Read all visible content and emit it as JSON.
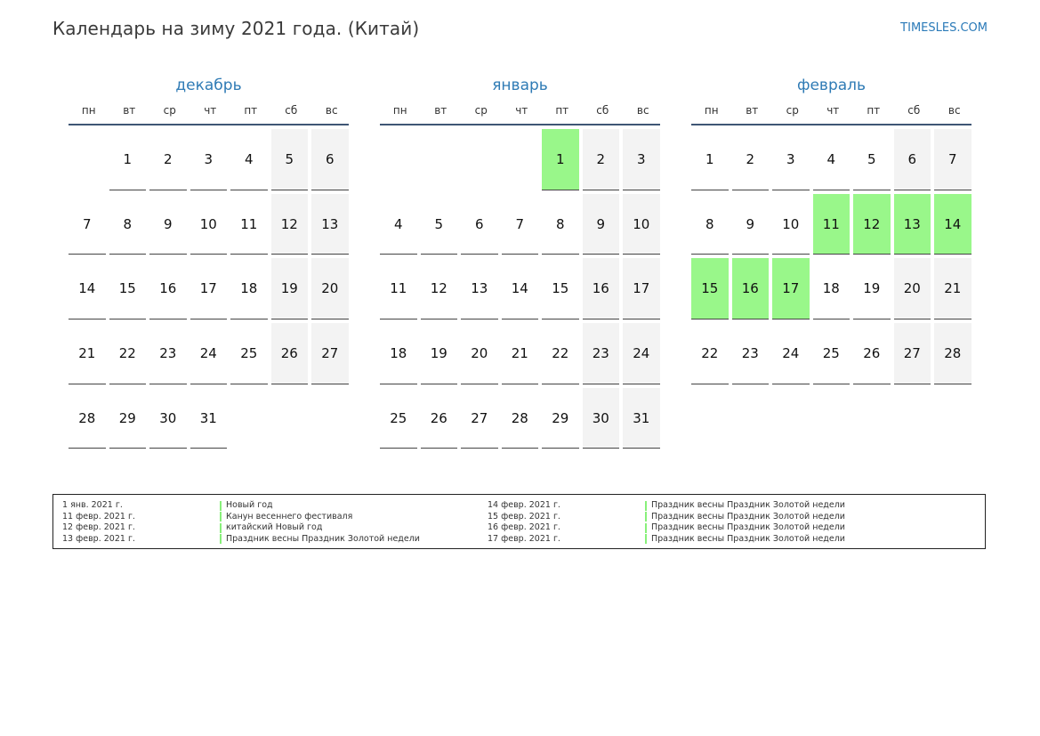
{
  "header": {
    "title": "Календарь на зиму 2021 года. (Китай)",
    "site": "TIMESLES.COM"
  },
  "weekdays": [
    "пн",
    "вт",
    "ср",
    "чт",
    "пт",
    "сб",
    "вс"
  ],
  "months": [
    {
      "name": "декабрь",
      "rows": [
        [
          {
            "d": "",
            "t": "empty"
          },
          {
            "d": "1",
            "t": ""
          },
          {
            "d": "2",
            "t": ""
          },
          {
            "d": "3",
            "t": ""
          },
          {
            "d": "4",
            "t": ""
          },
          {
            "d": "5",
            "t": "weekend"
          },
          {
            "d": "6",
            "t": "weekend"
          }
        ],
        [
          {
            "d": "7",
            "t": ""
          },
          {
            "d": "8",
            "t": ""
          },
          {
            "d": "9",
            "t": ""
          },
          {
            "d": "10",
            "t": ""
          },
          {
            "d": "11",
            "t": ""
          },
          {
            "d": "12",
            "t": "weekend"
          },
          {
            "d": "13",
            "t": "weekend"
          }
        ],
        [
          {
            "d": "14",
            "t": ""
          },
          {
            "d": "15",
            "t": ""
          },
          {
            "d": "16",
            "t": ""
          },
          {
            "d": "17",
            "t": ""
          },
          {
            "d": "18",
            "t": ""
          },
          {
            "d": "19",
            "t": "weekend"
          },
          {
            "d": "20",
            "t": "weekend"
          }
        ],
        [
          {
            "d": "21",
            "t": ""
          },
          {
            "d": "22",
            "t": ""
          },
          {
            "d": "23",
            "t": ""
          },
          {
            "d": "24",
            "t": ""
          },
          {
            "d": "25",
            "t": ""
          },
          {
            "d": "26",
            "t": "weekend"
          },
          {
            "d": "27",
            "t": "weekend"
          }
        ],
        [
          {
            "d": "28",
            "t": ""
          },
          {
            "d": "29",
            "t": ""
          },
          {
            "d": "30",
            "t": ""
          },
          {
            "d": "31",
            "t": ""
          },
          {
            "d": "",
            "t": "empty"
          },
          {
            "d": "",
            "t": "empty"
          },
          {
            "d": "",
            "t": "empty"
          }
        ]
      ]
    },
    {
      "name": "январь",
      "rows": [
        [
          {
            "d": "",
            "t": "empty"
          },
          {
            "d": "",
            "t": "empty"
          },
          {
            "d": "",
            "t": "empty"
          },
          {
            "d": "",
            "t": "empty"
          },
          {
            "d": "1",
            "t": "holiday"
          },
          {
            "d": "2",
            "t": "weekend"
          },
          {
            "d": "3",
            "t": "weekend"
          }
        ],
        [
          {
            "d": "4",
            "t": ""
          },
          {
            "d": "5",
            "t": ""
          },
          {
            "d": "6",
            "t": ""
          },
          {
            "d": "7",
            "t": ""
          },
          {
            "d": "8",
            "t": ""
          },
          {
            "d": "9",
            "t": "weekend"
          },
          {
            "d": "10",
            "t": "weekend"
          }
        ],
        [
          {
            "d": "11",
            "t": ""
          },
          {
            "d": "12",
            "t": ""
          },
          {
            "d": "13",
            "t": ""
          },
          {
            "d": "14",
            "t": ""
          },
          {
            "d": "15",
            "t": ""
          },
          {
            "d": "16",
            "t": "weekend"
          },
          {
            "d": "17",
            "t": "weekend"
          }
        ],
        [
          {
            "d": "18",
            "t": ""
          },
          {
            "d": "19",
            "t": ""
          },
          {
            "d": "20",
            "t": ""
          },
          {
            "d": "21",
            "t": ""
          },
          {
            "d": "22",
            "t": ""
          },
          {
            "d": "23",
            "t": "weekend"
          },
          {
            "d": "24",
            "t": "weekend"
          }
        ],
        [
          {
            "d": "25",
            "t": ""
          },
          {
            "d": "26",
            "t": ""
          },
          {
            "d": "27",
            "t": ""
          },
          {
            "d": "28",
            "t": ""
          },
          {
            "d": "29",
            "t": ""
          },
          {
            "d": "30",
            "t": "weekend"
          },
          {
            "d": "31",
            "t": "weekend"
          }
        ]
      ]
    },
    {
      "name": "февраль",
      "rows": [
        [
          {
            "d": "1",
            "t": ""
          },
          {
            "d": "2",
            "t": ""
          },
          {
            "d": "3",
            "t": ""
          },
          {
            "d": "4",
            "t": ""
          },
          {
            "d": "5",
            "t": ""
          },
          {
            "d": "6",
            "t": "weekend"
          },
          {
            "d": "7",
            "t": "weekend"
          }
        ],
        [
          {
            "d": "8",
            "t": ""
          },
          {
            "d": "9",
            "t": ""
          },
          {
            "d": "10",
            "t": ""
          },
          {
            "d": "11",
            "t": "holiday"
          },
          {
            "d": "12",
            "t": "holiday"
          },
          {
            "d": "13",
            "t": "holiday"
          },
          {
            "d": "14",
            "t": "holiday"
          }
        ],
        [
          {
            "d": "15",
            "t": "holiday"
          },
          {
            "d": "16",
            "t": "holiday"
          },
          {
            "d": "17",
            "t": "holiday"
          },
          {
            "d": "18",
            "t": ""
          },
          {
            "d": "19",
            "t": ""
          },
          {
            "d": "20",
            "t": "weekend"
          },
          {
            "d": "21",
            "t": "weekend"
          }
        ],
        [
          {
            "d": "22",
            "t": ""
          },
          {
            "d": "23",
            "t": ""
          },
          {
            "d": "24",
            "t": ""
          },
          {
            "d": "25",
            "t": ""
          },
          {
            "d": "26",
            "t": ""
          },
          {
            "d": "27",
            "t": "weekend"
          },
          {
            "d": "28",
            "t": "weekend"
          }
        ]
      ]
    }
  ],
  "legend": {
    "left": [
      {
        "date": "1 янв. 2021 г.",
        "name": "Новый год"
      },
      {
        "date": "11 февр. 2021 г.",
        "name": "Канун весеннего фестиваля"
      },
      {
        "date": "12 февр. 2021 г.",
        "name": "китайский Новый год"
      },
      {
        "date": "13 февр. 2021 г.",
        "name": "Праздник весны Праздник Золотой недели"
      }
    ],
    "right": [
      {
        "date": "14 февр. 2021 г.",
        "name": "Праздник весны Праздник Золотой недели"
      },
      {
        "date": "15 февр. 2021 г.",
        "name": "Праздник весны Праздник Золотой недели"
      },
      {
        "date": "16 февр. 2021 г.",
        "name": "Праздник весны Праздник Золотой недели"
      },
      {
        "date": "17 февр. 2021 г.",
        "name": "Праздник весны Праздник Золотой недели"
      }
    ]
  },
  "colors": {
    "holiday": "#99f78a",
    "weekend": "#f3f3f3",
    "accent": "#2f7bb5"
  }
}
